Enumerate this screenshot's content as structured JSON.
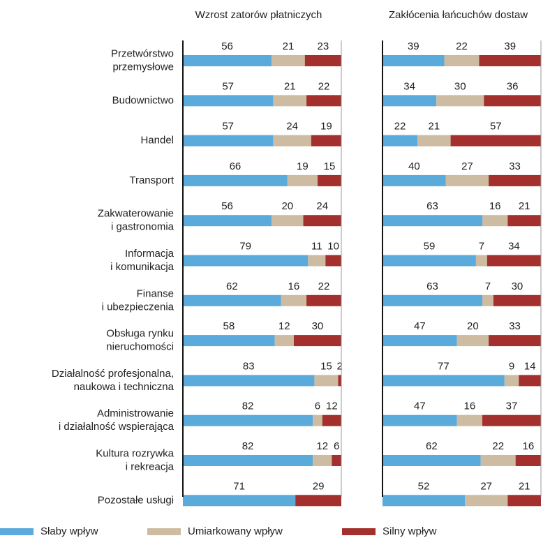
{
  "chart_data": {
    "type": "bar",
    "orientation": "horizontal",
    "stacked": true,
    "xlim": [
      0,
      100
    ],
    "categories": [
      "Przetwórstwo\nprzemysłowe",
      "Budownictwo",
      "Handel",
      "Transport",
      "Zakwaterowanie\ni gastronomia",
      "Informacja\ni komunikacja",
      "Finanse\ni ubezpieczenia",
      "Obsługa rynku\nnieruchomości",
      "Działalność profesjonalna,\nnaukowa i techniczna",
      "Administrowanie\ni działalność wspierająca",
      "Kultura rozrywka\ni rekreacja",
      "Pozostałe usługi"
    ],
    "legend": [
      {
        "name": "Słaby wpływ",
        "color": "#5aaadc"
      },
      {
        "name": "Umiarkowany wpływ",
        "color": "#cdbca1"
      },
      {
        "name": "Silny wpływ",
        "color": "#a3302c"
      }
    ],
    "panels": [
      {
        "title": "Wzrost zatorów płatniczych",
        "series": [
          {
            "values": [
              56,
              57,
              57,
              66,
              56,
              79,
              62,
              58,
              83,
              82,
              82,
              71
            ]
          },
          {
            "values": [
              21,
              21,
              24,
              19,
              20,
              11,
              16,
              12,
              15,
              6,
              12,
              null
            ]
          },
          {
            "values": [
              23,
              22,
              19,
              15,
              24,
              10,
              22,
              30,
              2,
              12,
              6,
              29
            ]
          }
        ]
      },
      {
        "title": "Zakłócenia łańcuchów dostaw",
        "series": [
          {
            "values": [
              39,
              34,
              22,
              40,
              63,
              59,
              63,
              47,
              77,
              47,
              62,
              52
            ]
          },
          {
            "values": [
              22,
              30,
              21,
              27,
              16,
              7,
              7,
              20,
              9,
              16,
              22,
              27
            ]
          },
          {
            "values": [
              39,
              36,
              57,
              33,
              21,
              34,
              30,
              33,
              14,
              37,
              16,
              21
            ]
          }
        ]
      }
    ]
  }
}
